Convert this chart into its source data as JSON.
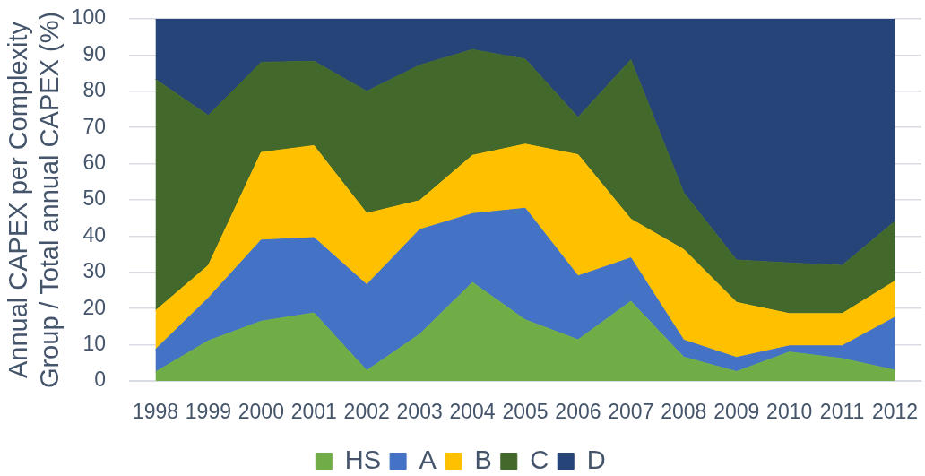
{
  "chart_data": {
    "type": "area",
    "stacked": true,
    "ylabel": "Annual CAPEX per Complexity Group / Total annual CAPEX (%)",
    "categories": [
      "1998",
      "1999",
      "2000",
      "2001",
      "2002",
      "2003",
      "2004",
      "2005",
      "2006",
      "2007",
      "2008",
      "2009",
      "2010",
      "2011",
      "2012"
    ],
    "series": [
      {
        "name": "HS",
        "color": "#70ad47",
        "values": [
          2.5,
          11.1,
          16.5,
          18.8,
          2.9,
          12.9,
          27.2,
          16.9,
          11.4,
          22.0,
          6.6,
          2.6,
          8.0,
          6.2,
          3.0
        ]
      },
      {
        "name": "A",
        "color": "#4472c4",
        "values": [
          6.2,
          11.8,
          22.4,
          20.8,
          23.7,
          28.9,
          19.0,
          30.8,
          17.6,
          12.0,
          4.7,
          3.9,
          1.7,
          3.5,
          14.6
        ]
      },
      {
        "name": "B",
        "color": "#ffc000",
        "values": [
          10.7,
          9.0,
          24.2,
          25.4,
          19.7,
          8.0,
          16.1,
          17.7,
          33.5,
          10.7,
          25.0,
          15.2,
          8.9,
          8.9,
          10.0
        ]
      },
      {
        "name": "C",
        "color": "#43682b",
        "values": [
          63.9,
          41.4,
          24.9,
          23.3,
          33.7,
          37.4,
          29.2,
          23.5,
          10.3,
          44.0,
          15.7,
          11.7,
          14.0,
          13.3,
          16.5
        ]
      },
      {
        "name": "D",
        "color": "#264478",
        "values": [
          16.7,
          26.7,
          12.0,
          11.7,
          20.0,
          12.8,
          8.5,
          11.1,
          27.2,
          11.3,
          48.0,
          66.6,
          67.4,
          68.1,
          55.9
        ]
      }
    ],
    "ylim": [
      0,
      100
    ],
    "yticks": [
      0,
      10,
      20,
      30,
      40,
      50,
      60,
      70,
      80,
      90,
      100
    ],
    "grid": "y",
    "legend": "bottom"
  }
}
